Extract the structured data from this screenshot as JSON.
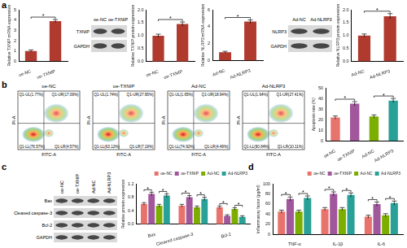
{
  "panel_labels": [
    "a",
    "b",
    "c",
    "d"
  ],
  "chart_data": [
    {
      "type": "bar",
      "ylabel": "Relative TXNIP mRNA expression",
      "categories": [
        "oe-NC",
        "oe-TXNIP"
      ],
      "values": [
        1.0,
        3.9
      ],
      "errors": [
        0.1,
        0.15
      ],
      "color": "#b03a2e",
      "ylim": [
        0,
        5
      ],
      "yticks": [
        0,
        1,
        2,
        3,
        4,
        5
      ],
      "grid": false,
      "annotations": [
        {
          "text": "*",
          "between": [
            0,
            1
          ]
        }
      ]
    },
    {
      "type": "bar",
      "ylabel": "Relative TXNIP protein expression",
      "categories": [
        "oe-NC",
        "oe-TXNIP"
      ],
      "values": [
        1.0,
        1.45
      ],
      "errors": [
        0.06,
        0.08
      ],
      "color": "#b03a2e",
      "ylim": [
        0,
        2
      ],
      "yticks": [
        {
          "value": 0,
          "label": "0.0"
        },
        {
          "value": 0.5,
          "label": "0.5"
        },
        {
          "value": 1,
          "label": "1.0"
        },
        {
          "value": 1.5,
          "label": "1.5"
        },
        {
          "value": 2,
          "label": "2.0"
        }
      ],
      "grid": false,
      "annotations": [
        {
          "text": "*",
          "between": [
            0,
            1
          ]
        }
      ]
    },
    {
      "type": "bar",
      "ylabel": "Relative NLRP3 mRNA expression",
      "categories": [
        "Ad-NC",
        "Ad-NLRP3"
      ],
      "values": [
        1.0,
        4.6
      ],
      "errors": [
        0.1,
        0.2
      ],
      "color": "#b03a2e",
      "ylim": [
        0,
        6
      ],
      "yticks": [
        0,
        2,
        4,
        6
      ],
      "grid": false,
      "annotations": [
        {
          "text": "*",
          "between": [
            0,
            1
          ]
        }
      ]
    },
    {
      "type": "bar",
      "ylabel": "Relative NLRP3 protein expression",
      "categories": [
        "Ad-NC",
        "Ad-NLRP3"
      ],
      "values": [
        1.0,
        1.75
      ],
      "errors": [
        0.06,
        0.1
      ],
      "color": "#b03a2e",
      "ylim": [
        0,
        2
      ],
      "yticks": [
        {
          "value": 0,
          "label": "0.0"
        },
        {
          "value": 0.5,
          "label": "0.5"
        },
        {
          "value": 1,
          "label": "1.0"
        },
        {
          "value": 1.5,
          "label": "1.5"
        },
        {
          "value": 2,
          "label": "2.0"
        }
      ],
      "grid": false,
      "annotations": [
        {
          "text": "*",
          "between": [
            0,
            1
          ]
        }
      ]
    },
    {
      "type": "bar",
      "ylabel": "Apoptosis rate (%)",
      "categories": [
        "oe-NC",
        "oe-TXNIP",
        "Ad-NC",
        "Ad-NLRP3"
      ],
      "values": [
        22,
        35,
        23,
        38
      ],
      "errors": [
        1.5,
        2,
        1.5,
        2
      ],
      "colors": [
        "#e8736c",
        "#a1579b",
        "#7cae00",
        "#2aa198"
      ],
      "ylim": [
        0,
        50
      ],
      "yticks": [
        0,
        10,
        20,
        30,
        40,
        50
      ],
      "grid": false,
      "annotations": [
        {
          "text": "*",
          "between": [
            0,
            1
          ]
        },
        {
          "text": "*",
          "between": [
            2,
            3
          ]
        }
      ]
    },
    {
      "type": "bar",
      "ylabel": "Relative protein expression",
      "categories": [
        "Bax",
        "Cleaved caspase-3",
        "Bcl-2"
      ],
      "series": [
        {
          "name": "oe-NC",
          "color": "#e8736c",
          "values": [
            0.6,
            0.55,
            0.5
          ],
          "errors": [
            0.04,
            0.04,
            0.04
          ]
        },
        {
          "name": "oe-TXNIP",
          "color": "#a1579b",
          "values": [
            0.9,
            0.8,
            0.25
          ],
          "errors": [
            0.05,
            0.05,
            0.03
          ]
        },
        {
          "name": "Ad-NC",
          "color": "#7cae00",
          "values": [
            0.55,
            0.5,
            0.45
          ],
          "errors": [
            0.04,
            0.04,
            0.04
          ]
        },
        {
          "name": "Ad-NLRP3",
          "color": "#2aa198",
          "values": [
            0.85,
            0.75,
            0.22
          ],
          "errors": [
            0.05,
            0.05,
            0.03
          ]
        }
      ],
      "ylim": [
        0,
        1.2
      ],
      "yticks": [
        {
          "value": 0,
          "label": "0.0"
        },
        {
          "value": 0.4,
          "label": "0.4"
        },
        {
          "value": 0.8,
          "label": "0.8"
        },
        {
          "value": 1.2,
          "label": "1.2"
        }
      ],
      "grid": false,
      "legend": "top-right",
      "annotations": [
        {
          "text": "*",
          "category": 0,
          "between": [
            0,
            1
          ]
        },
        {
          "text": "*",
          "category": 0,
          "between": [
            2,
            3
          ]
        },
        {
          "text": "*",
          "category": 1,
          "between": [
            0,
            1
          ]
        },
        {
          "text": "*",
          "category": 1,
          "between": [
            2,
            3
          ]
        },
        {
          "text": "*",
          "category": 2,
          "between": [
            0,
            1
          ]
        },
        {
          "text": "*",
          "category": 2,
          "between": [
            2,
            3
          ]
        }
      ]
    },
    {
      "type": "bar",
      "ylabel": "Inflammatory factor (pg/ml)",
      "categories": [
        "TNF-α",
        "IL-1β",
        "IL-6"
      ],
      "series": [
        {
          "name": "oe-NC",
          "color": "#e8736c",
          "values": [
            45,
            50,
            35
          ],
          "errors": [
            3,
            3,
            3
          ]
        },
        {
          "name": "oe-TXNIP",
          "color": "#a1579b",
          "values": [
            70,
            80,
            60
          ],
          "errors": [
            4,
            4,
            4
          ]
        },
        {
          "name": "Ad-NC",
          "color": "#7cae00",
          "values": [
            45,
            50,
            38
          ],
          "errors": [
            3,
            3,
            3
          ]
        },
        {
          "name": "Ad-NLRP3",
          "color": "#2aa198",
          "values": [
            72,
            78,
            62
          ],
          "errors": [
            4,
            4,
            4
          ]
        }
      ],
      "ylim": [
        0,
        100
      ],
      "yticks": [
        0,
        20,
        40,
        60,
        80,
        100
      ],
      "grid": false,
      "legend": "top-right",
      "annotations": [
        {
          "text": "*",
          "category": 0,
          "between": [
            0,
            1
          ]
        },
        {
          "text": "*",
          "category": 0,
          "between": [
            2,
            3
          ]
        },
        {
          "text": "*",
          "category": 1,
          "between": [
            0,
            1
          ]
        },
        {
          "text": "*",
          "category": 1,
          "between": [
            2,
            3
          ]
        },
        {
          "text": "*",
          "category": 2,
          "between": [
            0,
            1
          ]
        },
        {
          "text": "*",
          "category": 2,
          "between": [
            2,
            3
          ]
        }
      ]
    }
  ],
  "blots": [
    {
      "panel": "a",
      "lanes": [
        "oe-NC",
        "oe-TXNIP"
      ],
      "rows": [
        "TXNIP",
        "GAPDH"
      ]
    },
    {
      "panel": "a",
      "lanes": [
        "Ad-NC",
        "Ad-NLRP3"
      ],
      "rows": [
        "NLRP3",
        "GAPDH"
      ]
    },
    {
      "panel": "c",
      "lanes": [
        "oe-NC",
        "oe-TXNIP",
        "Ad-NC",
        "Ad-NLRP3"
      ],
      "rows": [
        "Bax",
        "Cleaved caspase-3",
        "Bcl-2",
        "GAPDH"
      ]
    }
  ],
  "flow": [
    {
      "title": "oe-NC",
      "x_label": "FITC-A",
      "y_label": "PI-A",
      "quadrants": {
        "UL": "Q1-UL(1.77%)",
        "UR": "Q1-UR(17.09%)",
        "LL": "Q1-LL(76.57%)",
        "LR": "Q1-LR(4.57%)"
      }
    },
    {
      "title": "oe-TXNIP",
      "x_label": "FITC-A",
      "y_label": "PI-A",
      "quadrants": {
        "UL": "Q1-UL(1.74%)",
        "UR": "Q1-UR(27.95%)",
        "LL": "Q1-LL(63.12%)",
        "LR": "Q1-LR(7.19%)"
      }
    },
    {
      "title": "Ad-NC",
      "x_label": "FITC-A",
      "y_label": "PI-A",
      "quadrants": {
        "UL": "Q1-UL(1.65%)",
        "UR": "Q1-UR(18.94%)",
        "LL": "Q1-LL(74.92%)",
        "LR": "Q1-LR(4.49%)"
      }
    },
    {
      "title": "Ad-NLRP3",
      "x_label": "FITC-A",
      "y_label": "PI-A",
      "quadrants": {
        "UL": "Q1-UL(1.64%)",
        "UR": "Q1-UR(27.41%)",
        "LL": "Q1-LL(60.84%)",
        "LR": "Q1-LR(10.11%)"
      }
    }
  ]
}
